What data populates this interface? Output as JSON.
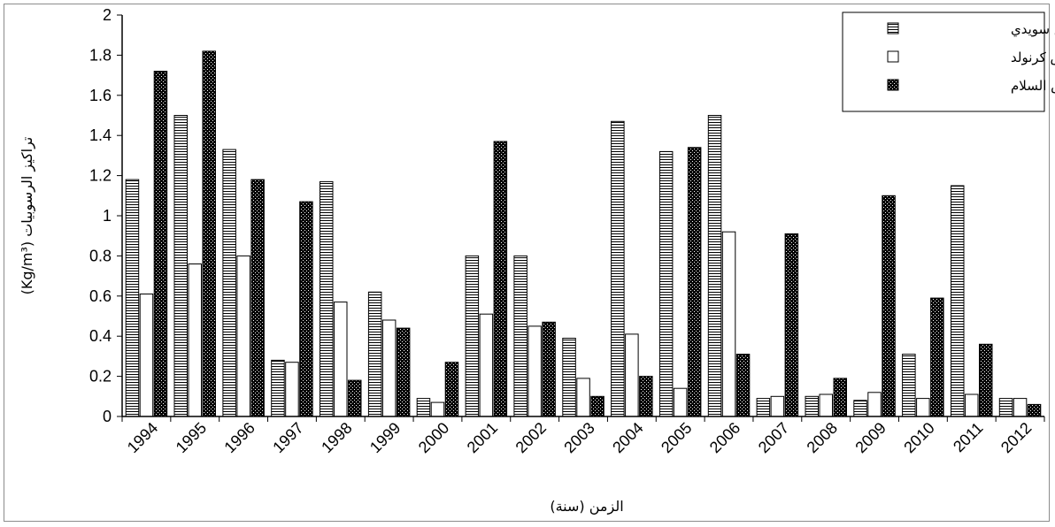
{
  "chart_data": {
    "type": "bar",
    "categories": [
      "1994",
      "1995",
      "1996",
      "1997",
      "1998",
      "1999",
      "2000",
      "2001",
      "2002",
      "2003",
      "2004",
      "2005",
      "2006",
      "2007",
      "2008",
      "2009",
      "2010",
      "2011",
      "2012"
    ],
    "series": [
      {
        "name": "حوض سويدي",
        "pattern": "horizontal-lines",
        "values": [
          1.18,
          1.5,
          1.33,
          0.28,
          1.17,
          0.62,
          0.09,
          0.8,
          0.8,
          0.39,
          1.47,
          1.32,
          1.5,
          0.09,
          0.1,
          0.08,
          0.31,
          1.15,
          0.09
        ]
      },
      {
        "name": "حوض كرنولد",
        "pattern": "hollow",
        "values": [
          0.61,
          0.76,
          0.8,
          0.27,
          0.57,
          0.48,
          0.07,
          0.51,
          0.45,
          0.19,
          0.41,
          0.14,
          0.92,
          0.1,
          0.11,
          0.12,
          0.09,
          0.11,
          0.09
        ]
      },
      {
        "name": "حوض السلام",
        "pattern": "dark-checker",
        "values": [
          1.72,
          1.82,
          1.18,
          1.07,
          0.18,
          0.44,
          0.27,
          1.37,
          0.47,
          0.1,
          0.2,
          1.34,
          0.31,
          0.91,
          0.19,
          1.1,
          0.59,
          0.36,
          0.06
        ]
      }
    ],
    "xlabel": "الزمن (سنة)",
    "ylabel": "تراكيز الرسوبيات (Kg/m³)",
    "ylim": [
      0,
      2
    ],
    "yticks": [
      "0",
      "0.2",
      "0.4",
      "0.6",
      "0.8",
      "1",
      "1.2",
      "1.4",
      "1.6",
      "1.8",
      "2"
    ],
    "grid": false,
    "legend_position": "top-right",
    "colors": {
      "line": "#000000",
      "fill": "#ffffff",
      "frame": "#8c8c8c"
    }
  }
}
